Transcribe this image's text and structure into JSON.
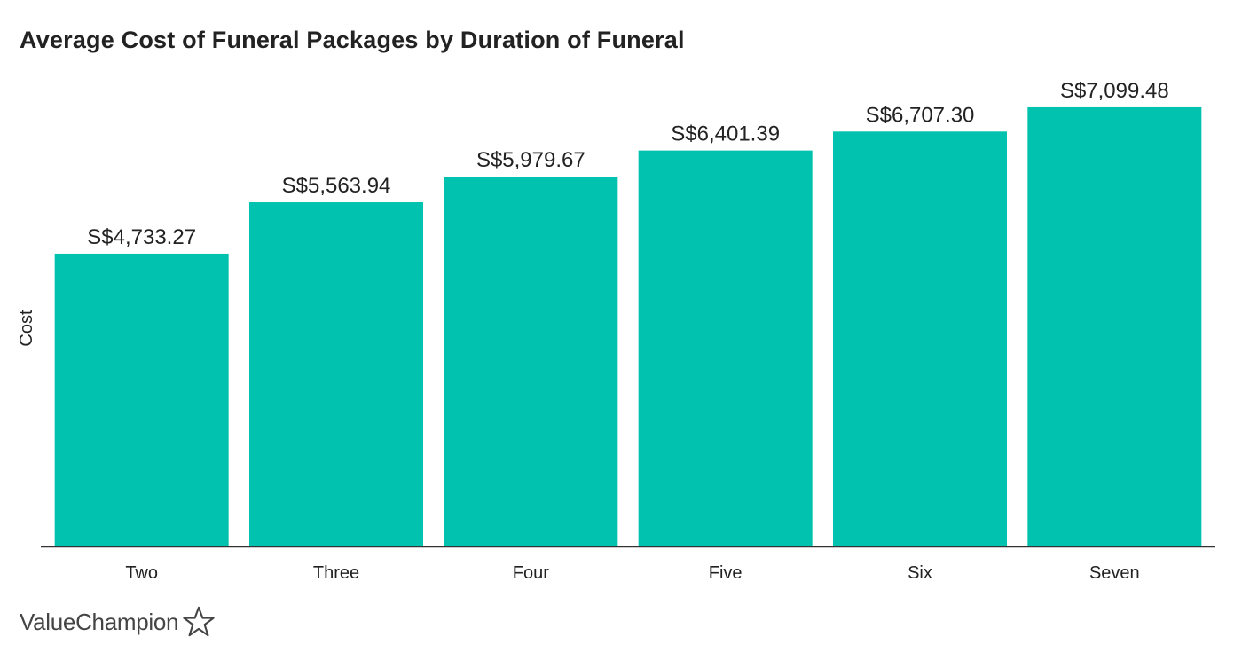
{
  "brand": {
    "name": "ValueChampion",
    "icon": "star-outline-icon",
    "color": "#444444"
  },
  "chart_data": {
    "type": "bar",
    "title": "Average Cost of Funeral Packages by Duration of Funeral",
    "xlabel": "",
    "ylabel": "Cost",
    "categories": [
      "Two",
      "Three",
      "Four",
      "Five",
      "Six",
      "Seven"
    ],
    "values": [
      4733.27,
      5563.94,
      5979.67,
      6401.39,
      6707.3,
      7099.48
    ],
    "data_labels": [
      "S$4,733.27",
      "S$5,563.94",
      "S$5,979.67",
      "S$6,401.39",
      "S$6,707.30",
      "S$7,099.48"
    ],
    "ylim": [
      0,
      7400
    ],
    "grid": false,
    "legend": "none",
    "bar_color": "#00C2AE",
    "axis_color": "#333333"
  }
}
